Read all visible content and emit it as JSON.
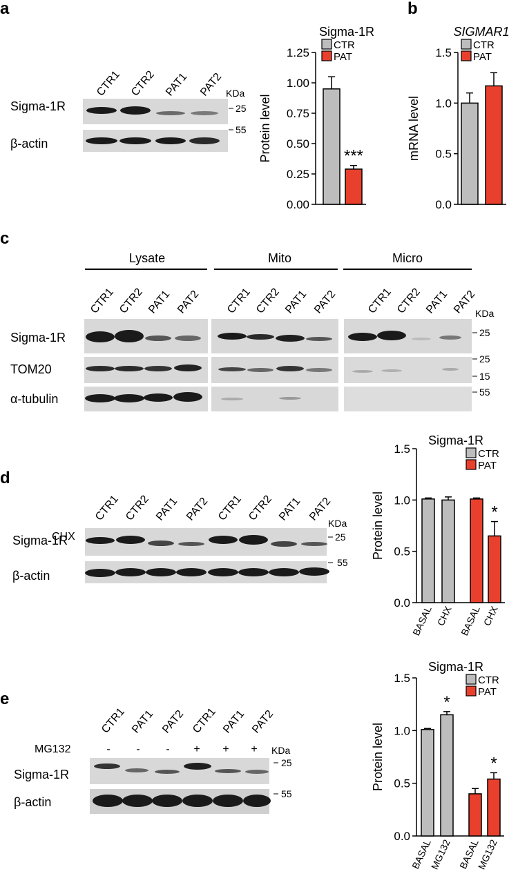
{
  "colors": {
    "ctr": "#bdbdbd",
    "pat": "#e8402d",
    "blot_bg": "#d6d6d6",
    "band": "#1a1a1a"
  },
  "panel_a": {
    "letter": "a",
    "lanes": [
      "CTR1",
      "CTR2",
      "PAT1",
      "PAT2"
    ],
    "kda": "KDa",
    "rows": [
      {
        "label": "Sigma-1R",
        "marker": "25"
      },
      {
        "label": "β-actin",
        "marker": "55"
      }
    ]
  },
  "panel_b": {
    "letter": "b"
  },
  "panel_c": {
    "letter": "c",
    "groups": [
      "Lysate",
      "Mito",
      "Micro"
    ],
    "lanes": [
      "CTR1",
      "CTR2",
      "PAT1",
      "PAT2"
    ],
    "kda": "KDa",
    "rows": [
      {
        "label": "Sigma-1R",
        "markers": [
          "25"
        ]
      },
      {
        "label": "TOM20",
        "markers": [
          "25",
          "15"
        ]
      },
      {
        "label": "α-tubulin",
        "markers": [
          "55"
        ]
      }
    ]
  },
  "panel_d": {
    "letter": "d",
    "lanes": [
      "CTR1",
      "CTR2",
      "PAT1",
      "PAT2",
      "CTR1",
      "CTR2",
      "PAT1",
      "PAT2"
    ],
    "treat_label": "CHX",
    "treat": [
      "-",
      "-",
      "-",
      "-",
      "+",
      "+",
      "+",
      "+"
    ],
    "kda": "KDa",
    "rows": [
      {
        "label": "Sigma-1R",
        "marker": "25"
      },
      {
        "label": "β-actin",
        "marker": "55"
      }
    ]
  },
  "panel_e": {
    "letter": "e",
    "lanes": [
      "CTR1",
      "PAT1",
      "PAT2",
      "CTR1",
      "PAT1",
      "PAT2"
    ],
    "treat_label": "MG132",
    "treat": [
      "-",
      "-",
      "-",
      "+",
      "+",
      "+"
    ],
    "kda": "KDa",
    "rows": [
      {
        "label": "Sigma-1R",
        "marker": "25"
      },
      {
        "label": "β-actin",
        "marker": "55"
      }
    ]
  },
  "chart_data": [
    {
      "type": "bar",
      "title": "Sigma-1R",
      "ylabel": "Protein level",
      "categories": [
        "CTR",
        "PAT"
      ],
      "values": [
        0.95,
        0.29
      ],
      "errors": [
        0.1,
        0.03
      ],
      "colors": [
        "ctr",
        "pat"
      ],
      "ylim": [
        0,
        1.25
      ],
      "yticks": [
        "0.00",
        "0.25",
        "0.50",
        "0.75",
        "1.00",
        "1.25"
      ],
      "annotations": [
        {
          "bar": 1,
          "text": "***"
        }
      ],
      "legend": [
        "CTR",
        "PAT"
      ],
      "legend_position": "top-right",
      "grid": false
    },
    {
      "type": "bar",
      "title": "SIGMAR1",
      "ylabel": "mRNA level",
      "categories": [
        "CTR",
        "PAT"
      ],
      "values": [
        1.0,
        1.17
      ],
      "errors": [
        0.1,
        0.13
      ],
      "colors": [
        "ctr",
        "pat"
      ],
      "ylim": [
        0,
        1.5
      ],
      "yticks": [
        "0.0",
        "0.5",
        "1.0",
        "1.5"
      ],
      "annotations": [],
      "legend": [
        "CTR",
        "PAT"
      ],
      "legend_position": "top-right",
      "grid": false
    },
    {
      "type": "bar",
      "title": "Sigma-1R",
      "ylabel": "Protein level",
      "categories": [
        "BASAL",
        "CHX",
        "BASAL",
        "CHX"
      ],
      "values": [
        1.01,
        1.0,
        1.01,
        0.65
      ],
      "errors": [
        0.01,
        0.03,
        0.01,
        0.14
      ],
      "colors": [
        "ctr",
        "ctr",
        "pat",
        "pat"
      ],
      "ylim": [
        0,
        1.5
      ],
      "yticks": [
        "0.0",
        "0.5",
        "1.0",
        "1.5"
      ],
      "annotations": [
        {
          "bar": 3,
          "text": "*"
        }
      ],
      "legend": [
        "CTR",
        "PAT"
      ],
      "legend_position": "top-right",
      "grid": false
    },
    {
      "type": "bar",
      "title": "Sigma-1R",
      "ylabel": "Protein level",
      "categories": [
        "BASAL",
        "MG132",
        "BASAL",
        "MG132"
      ],
      "values": [
        1.01,
        1.15,
        0.4,
        0.54
      ],
      "errors": [
        0.01,
        0.03,
        0.05,
        0.06
      ],
      "colors": [
        "ctr",
        "ctr",
        "pat",
        "pat"
      ],
      "ylim": [
        0,
        1.5
      ],
      "yticks": [
        "0.0",
        "0.5",
        "1.0",
        "1.5"
      ],
      "annotations": [
        {
          "bar": 1,
          "text": "*"
        },
        {
          "bar": 3,
          "text": "*"
        }
      ],
      "legend": [
        "CTR",
        "PAT"
      ],
      "legend_position": "top-right",
      "grid": false
    }
  ]
}
